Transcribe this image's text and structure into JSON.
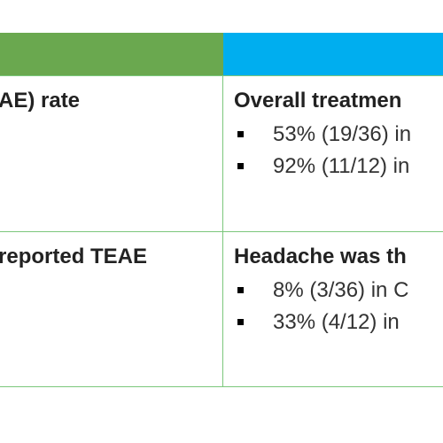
{
  "table": {
    "rows": [
      {
        "label": "AE) rate",
        "heading": "Overall treatmen",
        "bullets": [
          "53% (19/36) in",
          "92% (11/12) in"
        ]
      },
      {
        "label": "reported TEAE",
        "heading": "Headache was th",
        "bullets": [
          "8% (3/36) in C",
          "33% (4/12) in"
        ]
      }
    ]
  },
  "colors": {
    "header_left": "#6aa84f",
    "header_right": "#00aeef",
    "grid_line": "#7bc77b"
  }
}
